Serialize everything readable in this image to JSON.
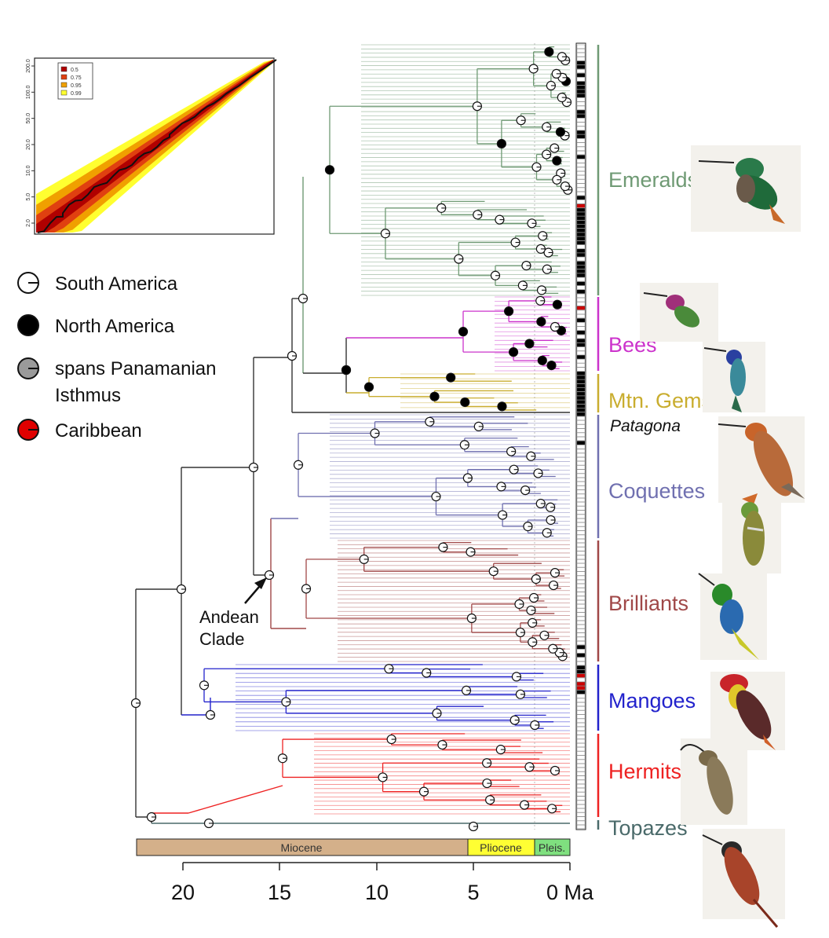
{
  "legend": {
    "items": [
      {
        "label": "South America",
        "key": "sa",
        "color": "#ffffff"
      },
      {
        "label": "North America",
        "key": "na",
        "color": "#000000"
      },
      {
        "label": "spans Panamanian",
        "label2": "Isthmus",
        "key": "isth",
        "color": "#9a9a9a"
      },
      {
        "label": "Caribbean",
        "key": "car",
        "color": "#e00000"
      }
    ]
  },
  "inset": {
    "y_ticks": [
      "2.0",
      "5.0",
      "10.0",
      "20.0",
      "50.0",
      "100.0",
      "200.0"
    ],
    "legend": [
      {
        "label": "0.5",
        "color": "#b00000"
      },
      {
        "label": "0.75",
        "color": "#e04010"
      },
      {
        "label": "0.95",
        "color": "#f0a000"
      },
      {
        "label": "0.99",
        "color": "#ffff30"
      }
    ]
  },
  "clades": [
    {
      "name": "Emeralds",
      "color": "#6f9a74"
    },
    {
      "name": "Bees",
      "color": "#cc33cc"
    },
    {
      "name": "Mtn. Gems",
      "color": "#c9ad2f"
    },
    {
      "name": "Patagona",
      "color": "#111111"
    },
    {
      "name": "Coquettes",
      "color": "#7070b0"
    },
    {
      "name": "Brilliants",
      "color": "#a04848"
    },
    {
      "name": "Mangoes",
      "color": "#2222cc"
    },
    {
      "name": "Hermits",
      "color": "#ee2222"
    },
    {
      "name": "Topazes",
      "color": "#4a6a6a"
    }
  ],
  "annotation": {
    "line1": "Andean",
    "line2": "Clade"
  },
  "epochs": [
    {
      "name": "Miocene",
      "color": "#d4b08a"
    },
    {
      "name": "Pliocene",
      "color": "#ffff33"
    },
    {
      "name": "Pleis.",
      "color": "#7fe07f"
    }
  ],
  "axis": {
    "ticks": [
      "20",
      "15",
      "10",
      "5",
      "0 Ma"
    ]
  },
  "stem_color": "#333333"
}
